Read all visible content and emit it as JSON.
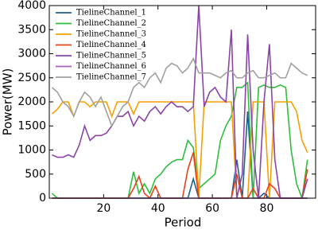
{
  "chart_data": {
    "type": "line",
    "xlabel": "Period",
    "ylabel": "Power(MW)",
    "xlim": [
      0,
      98
    ],
    "xticks": [
      20,
      40,
      60,
      80
    ],
    "ylim": [
      0,
      4000
    ],
    "yticks": [
      0,
      500,
      1000,
      1500,
      2000,
      2500,
      3000,
      3500,
      4000
    ],
    "legend": "upper left",
    "x": [
      1,
      3,
      5,
      7,
      9,
      11,
      13,
      15,
      17,
      19,
      21,
      23,
      25,
      27,
      29,
      31,
      33,
      35,
      37,
      39,
      41,
      43,
      45,
      47,
      49,
      51,
      53,
      55,
      57,
      59,
      61,
      63,
      65,
      67,
      69,
      71,
      73,
      75,
      77,
      79,
      81,
      83,
      85,
      87,
      89,
      91,
      93,
      95
    ],
    "series": [
      {
        "name": "TielineChannel_1",
        "color": "#1f5f8b",
        "values": [
          0,
          0,
          0,
          0,
          0,
          0,
          0,
          0,
          0,
          0,
          0,
          0,
          0,
          0,
          0,
          0,
          0,
          0,
          0,
          0,
          0,
          0,
          0,
          0,
          0,
          0,
          400,
          0,
          0,
          0,
          0,
          0,
          0,
          0,
          800,
          0,
          1800,
          0,
          0,
          100,
          0,
          0,
          0,
          0,
          0,
          0,
          0,
          0
        ]
      },
      {
        "name": "TielineChannel_2",
        "color": "#2ebd3c",
        "values": [
          100,
          0,
          0,
          0,
          0,
          0,
          0,
          0,
          0,
          0,
          0,
          0,
          0,
          0,
          0,
          550,
          100,
          300,
          100,
          400,
          500,
          650,
          750,
          800,
          800,
          1200,
          1050,
          200,
          300,
          400,
          500,
          1200,
          1500,
          1700,
          2300,
          2300,
          2400,
          0,
          2300,
          2350,
          2300,
          2300,
          2350,
          2300,
          1000,
          300,
          0,
          800
        ]
      },
      {
        "name": "TielineChannel_3",
        "color": "#f5a000",
        "values": [
          1750,
          1850,
          2000,
          2000,
          1700,
          2000,
          2000,
          1900,
          2000,
          2000,
          2000,
          1700,
          2000,
          2000,
          2000,
          1750,
          2000,
          2000,
          2000,
          2000,
          2000,
          2000,
          2000,
          2000,
          2000,
          2000,
          2000,
          0,
          2000,
          2000,
          2000,
          2000,
          2000,
          2000,
          0,
          0,
          0,
          2000,
          2000,
          2000,
          0,
          2000,
          2000,
          2000,
          2000,
          1800,
          1200,
          950
        ]
      },
      {
        "name": "TielineChannel_4",
        "color": "#e8401a",
        "values": [
          0,
          0,
          0,
          0,
          0,
          0,
          0,
          0,
          0,
          0,
          0,
          0,
          0,
          0,
          0,
          200,
          450,
          100,
          0,
          250,
          0,
          0,
          0,
          0,
          0,
          600,
          950,
          0,
          0,
          0,
          0,
          0,
          0,
          0,
          500,
          0,
          0,
          200,
          0,
          0,
          300,
          200,
          0,
          0,
          0,
          0,
          0,
          600
        ]
      },
      {
        "name": "TielineChannel_5",
        "color": "#8a44a8",
        "values": [
          900,
          850,
          850,
          900,
          850,
          1100,
          1500,
          1200,
          1300,
          1300,
          1350,
          1500,
          1700,
          1700,
          1800,
          1500,
          1700,
          1600,
          1800,
          1900,
          1750,
          1900,
          2000,
          1900,
          1900,
          1800,
          1900,
          4000,
          1900,
          2200,
          2300,
          2100,
          2000,
          3500,
          0,
          500,
          3400,
          1000,
          0,
          2000,
          3200,
          800,
          0,
          0,
          0,
          0,
          0,
          400
        ]
      },
      {
        "name": "TielineChannel_6",
        "color": "#a862b8",
        "values": [
          0,
          0,
          0,
          0,
          0,
          0,
          0,
          0,
          0,
          0,
          0,
          0,
          0,
          0,
          0,
          0,
          0,
          0,
          0,
          0,
          0,
          0,
          0,
          0,
          0,
          0,
          0,
          0,
          0,
          0,
          0,
          0,
          0,
          0,
          0,
          0,
          0,
          0,
          0,
          0,
          0,
          0,
          0,
          0,
          0,
          0,
          0,
          0
        ]
      },
      {
        "name": "TielineChannel_7",
        "color": "#a0a0a0",
        "values": [
          2300,
          2200,
          2000,
          1900,
          1700,
          2000,
          2200,
          2100,
          1900,
          2100,
          1800,
          1500,
          1700,
          1900,
          2000,
          2300,
          2400,
          2300,
          2500,
          2600,
          2400,
          2700,
          2800,
          2750,
          2600,
          2700,
          2900,
          2600,
          2600,
          2600,
          2550,
          2500,
          2600,
          2650,
          2500,
          2500,
          2600,
          2650,
          2500,
          2500,
          2550,
          2600,
          2500,
          2500,
          2800,
          2700,
          2600,
          2550
        ]
      }
    ]
  }
}
